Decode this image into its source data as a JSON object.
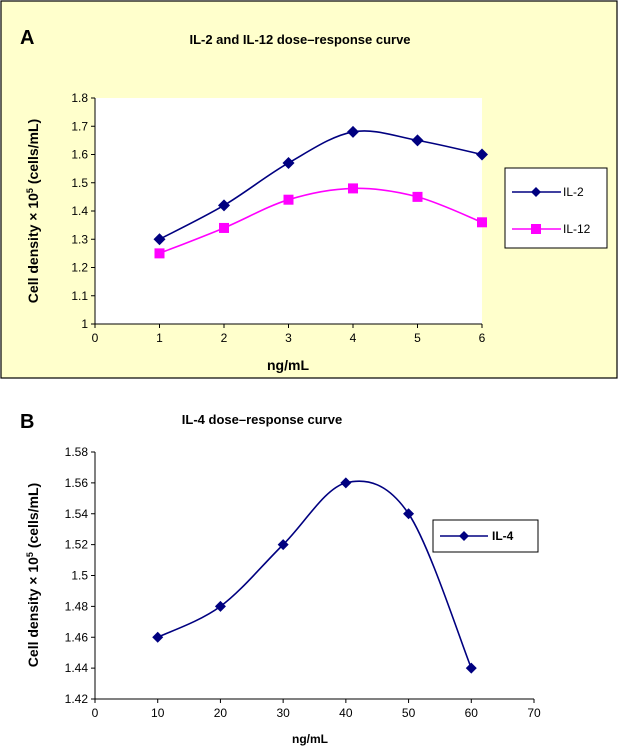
{
  "colors": {
    "panel_a_bg": "#FFFFCC",
    "plot_bg": "#FFFFFF",
    "il2": "#000080",
    "il12": "#FF00FF",
    "il4": "#000080"
  },
  "chart_data": [
    {
      "panel": "A",
      "type": "line",
      "title": "IL-2 and IL-12 dose–response curve",
      "xlabel": "ng/mL",
      "ylabel": "Cell density × 10⁵ (cells/mL)",
      "xlim": [
        0,
        6
      ],
      "ylim": [
        1,
        1.8
      ],
      "xticks": [
        "0",
        "1",
        "2",
        "3",
        "4",
        "5",
        "6"
      ],
      "yticks": [
        "1",
        "1.1",
        "1.2",
        "1.3",
        "1.4",
        "1.5",
        "1.6",
        "1.7",
        "1.8"
      ],
      "x": [
        1,
        2,
        3,
        4,
        5,
        6
      ],
      "series": [
        {
          "name": "IL-2",
          "marker": "diamond",
          "values": [
            1.3,
            1.42,
            1.57,
            1.68,
            1.65,
            1.6
          ]
        },
        {
          "name": "IL-12",
          "marker": "square",
          "values": [
            1.25,
            1.34,
            1.44,
            1.48,
            1.45,
            1.36
          ]
        }
      ],
      "legend": "right",
      "grid": false
    },
    {
      "panel": "B",
      "type": "line",
      "title": "IL-4 dose–response curve",
      "xlabel": "ng/mL",
      "ylabel": "Cell density × 10⁵ (cells/mL)",
      "xlim": [
        0,
        70
      ],
      "ylim": [
        1.42,
        1.58
      ],
      "xticks": [
        "0",
        "10",
        "20",
        "30",
        "40",
        "50",
        "60",
        "70"
      ],
      "yticks": [
        "1.42",
        "1.44",
        "1.46",
        "1.48",
        "1.5",
        "1.52",
        "1.54",
        "1.56",
        "1.58"
      ],
      "x": [
        10,
        20,
        30,
        40,
        50,
        60
      ],
      "series": [
        {
          "name": "IL-4",
          "marker": "diamond",
          "values": [
            1.46,
            1.48,
            1.52,
            1.56,
            1.54,
            1.44
          ]
        }
      ],
      "legend": "right",
      "grid": false
    }
  ]
}
